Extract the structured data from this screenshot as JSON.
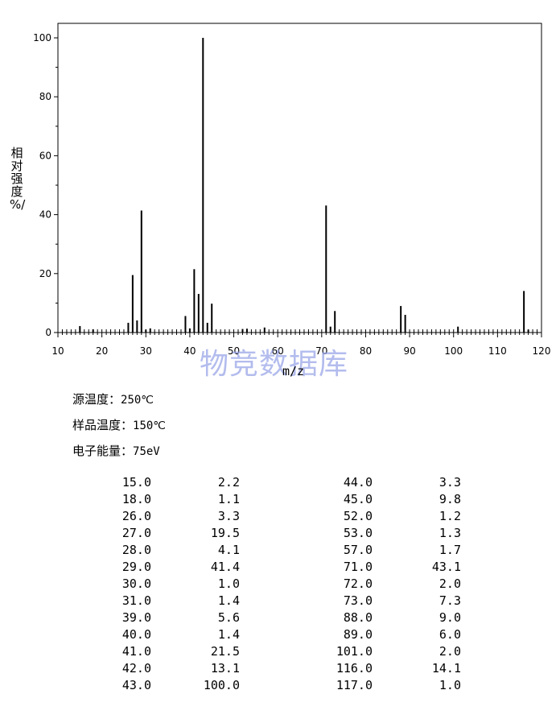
{
  "chart_data": {
    "type": "bar",
    "ylabel": "相对强度 %/",
    "xlabel": "m/z",
    "xlim": [
      10,
      120
    ],
    "ylim": [
      0,
      100
    ],
    "xticks": [
      "10",
      "20",
      "30",
      "40",
      "50",
      "60",
      "70",
      "80",
      "90",
      "100",
      "110",
      "120"
    ],
    "yticks": [
      "0",
      "20",
      "40",
      "60",
      "80",
      "100"
    ],
    "x": [
      15,
      18,
      26,
      27,
      28,
      29,
      30,
      31,
      39,
      40,
      41,
      42,
      43,
      44,
      45,
      52,
      53,
      57,
      71,
      72,
      73,
      88,
      89,
      101,
      116,
      117
    ],
    "values": [
      2.2,
      1.1,
      3.3,
      19.5,
      4.1,
      41.4,
      1.0,
      1.4,
      5.6,
      1.4,
      21.5,
      13.1,
      100.0,
      3.3,
      9.8,
      1.2,
      1.3,
      1.7,
      43.1,
      2.0,
      7.3,
      9.0,
      6.0,
      2.0,
      14.1,
      1.0
    ]
  },
  "watermark": "物竞数据库",
  "conditions": [
    {
      "label": "源温度：",
      "value": "250℃"
    },
    {
      "label": "样品温度：",
      "value": "150℃"
    },
    {
      "label": "电子能量：",
      "value": "75eV"
    }
  ],
  "peaks_table": [
    [
      "15.0",
      "2.2",
      "44.0",
      "3.3"
    ],
    [
      "18.0",
      "1.1",
      "45.0",
      "9.8"
    ],
    [
      "26.0",
      "3.3",
      "52.0",
      "1.2"
    ],
    [
      "27.0",
      "19.5",
      "53.0",
      "1.3"
    ],
    [
      "28.0",
      "4.1",
      "57.0",
      "1.7"
    ],
    [
      "29.0",
      "41.4",
      "71.0",
      "43.1"
    ],
    [
      "30.0",
      "1.0",
      "72.0",
      "2.0"
    ],
    [
      "31.0",
      "1.4",
      "73.0",
      "7.3"
    ],
    [
      "39.0",
      "5.6",
      "88.0",
      "9.0"
    ],
    [
      "40.0",
      "1.4",
      "89.0",
      "6.0"
    ],
    [
      "41.0",
      "21.5",
      "101.0",
      "2.0"
    ],
    [
      "42.0",
      "13.1",
      "116.0",
      "14.1"
    ],
    [
      "43.0",
      "100.0",
      "117.0",
      "1.0"
    ]
  ]
}
